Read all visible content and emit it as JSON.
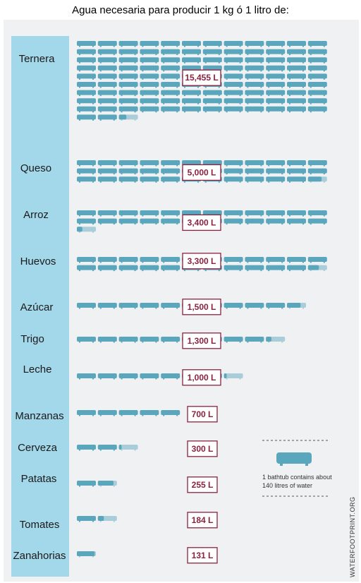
{
  "title": "Agua necesaria para producir 1 kg ó 1 litro de:",
  "legend": {
    "line1": "1 bathtub contains about",
    "line2": "140 litres of water",
    "icon": "bathtub-icon"
  },
  "credit": "WATERFOOTPRINT.ORG",
  "colors": {
    "tub": "#5aa6bd",
    "tub_light": "#a9ced9",
    "label_bar": "#a3d7ea",
    "value_text": "#8a2340"
  },
  "chart_data": {
    "type": "bar",
    "unit": "L",
    "litres_per_tub": 140,
    "categories": [
      "Ternera",
      "Queso",
      "Arroz",
      "Huevos",
      "Azúcar",
      "Trigo",
      "Leche",
      "Manzanas",
      "Cerveza",
      "Patatas",
      "Tomates",
      "Zanahorias"
    ],
    "values": [
      15455,
      5000,
      3400,
      3300,
      1500,
      1300,
      1000,
      700,
      300,
      255,
      184,
      131
    ],
    "value_labels": [
      "15,455 L",
      "5,000 L",
      "3,400 L",
      "3,300 L",
      "1,500 L",
      "1,300 L",
      "1,000 L",
      "700 L",
      "300 L",
      "255 L",
      "184 L",
      "131 L"
    ]
  }
}
